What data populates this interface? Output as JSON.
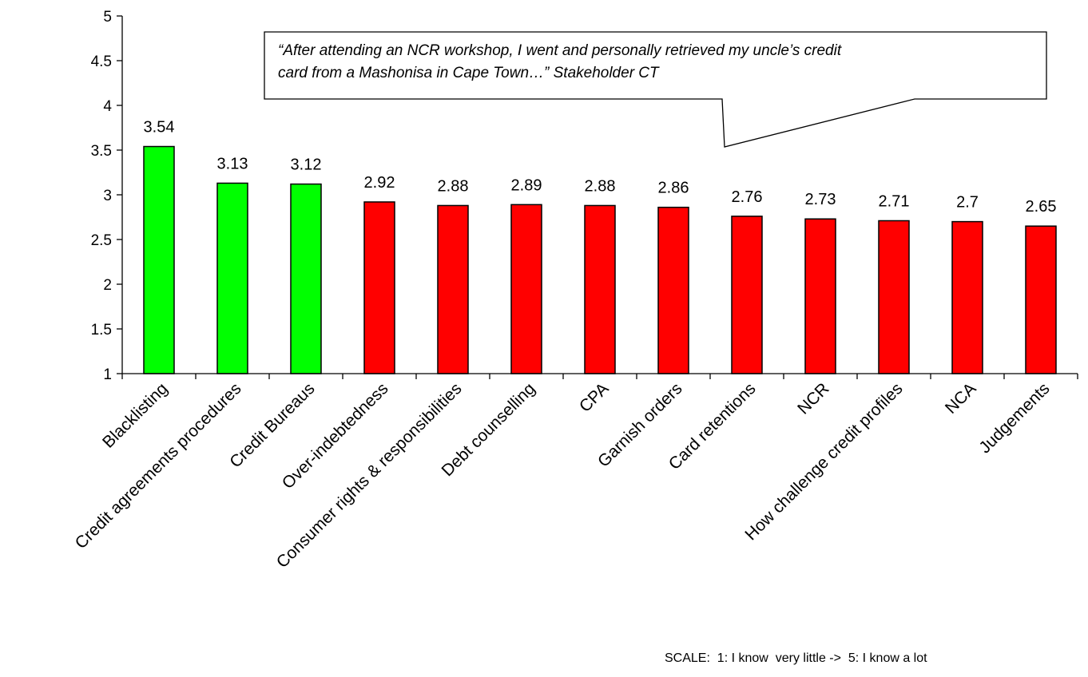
{
  "chart_data": {
    "type": "bar",
    "categories": [
      "Blacklisting",
      "Credit agreements procedures",
      "Credit Bureaus",
      "Over-indebtedness",
      "Consumer rights & responsibilities",
      "Debt counselling",
      "CPA",
      "Garnish orders",
      "Card retentions",
      "NCR",
      "How challenge credit profiles",
      "NCA",
      "Judgements"
    ],
    "values": [
      3.54,
      3.13,
      3.12,
      2.92,
      2.88,
      2.89,
      2.88,
      2.86,
      2.76,
      2.73,
      2.71,
      2.7,
      2.65
    ],
    "data_labels": [
      "3.54",
      "3.13",
      "3.12",
      "2.92",
      "2.88",
      "2.89",
      "2.88",
      "2.86",
      "2.76",
      "2.73",
      "2.71",
      "2.7",
      "2.65"
    ],
    "bar_colors": [
      "#00ff00",
      "#00ff00",
      "#00ff00",
      "#ff0000",
      "#ff0000",
      "#ff0000",
      "#ff0000",
      "#ff0000",
      "#ff0000",
      "#ff0000",
      "#ff0000",
      "#ff0000",
      "#ff0000"
    ],
    "yticks": [
      "1",
      "1.5",
      "2",
      "2.5",
      "3",
      "3.5",
      "4",
      "4.5",
      "5"
    ],
    "ylim": [
      1,
      5
    ],
    "grid": false,
    "title": "",
    "xlabel": "",
    "ylabel": "",
    "annotation_lines": [
      "“After attending an NCR workshop, I went and personally retrieved my uncle’s credit",
      "card from a Mashonisa in Cape Town…”  Stakeholder CT"
    ],
    "scale_note": "SCALE:  1: I know  very little ->  5: I know a lot"
  }
}
